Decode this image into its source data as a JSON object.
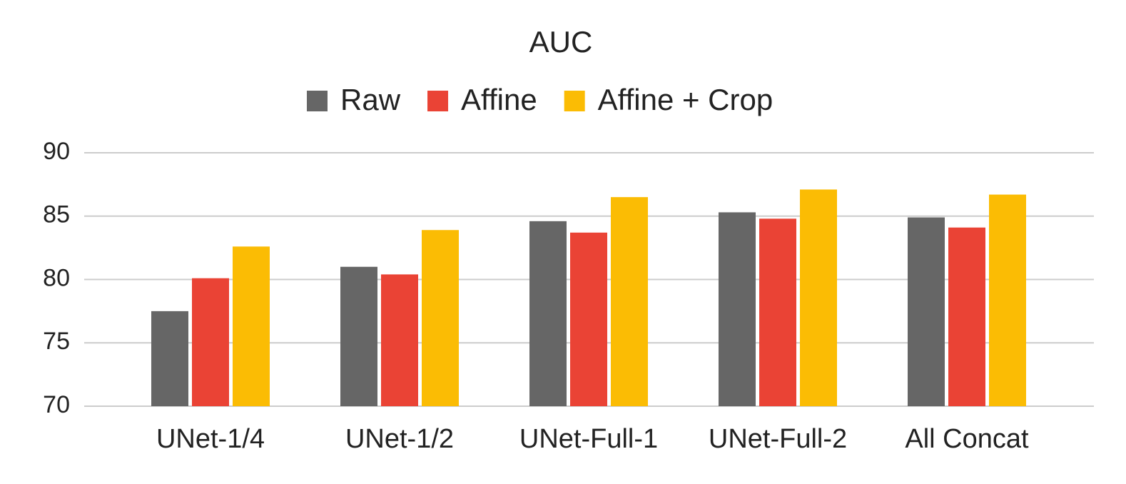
{
  "chart_data": {
    "type": "bar",
    "title": "AUC",
    "categories": [
      "UNet-1/4",
      "UNet-1/2",
      "UNet-Full-1",
      "UNet-Full-2",
      "All Concat"
    ],
    "series": [
      {
        "name": "Raw",
        "color": "#666666",
        "values": [
          77.5,
          81.0,
          84.6,
          85.3,
          84.9
        ]
      },
      {
        "name": "Affine",
        "color": "#ea4335",
        "values": [
          80.1,
          80.4,
          83.7,
          84.8,
          84.1
        ]
      },
      {
        "name": "Affine + Crop",
        "color": "#fbbc04",
        "values": [
          82.6,
          83.9,
          86.5,
          87.1,
          86.7
        ]
      }
    ],
    "ylim": [
      70,
      90
    ],
    "yticks": [
      70,
      75,
      80,
      85,
      90
    ],
    "grid": true
  }
}
